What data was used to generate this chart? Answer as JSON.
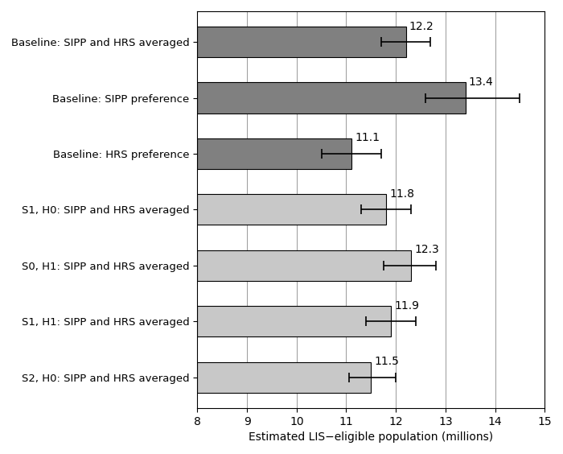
{
  "categories": [
    "Baseline: SIPP and HRS averaged",
    "Baseline: SIPP preference",
    "Baseline: HRS preference",
    "S1, H0: SIPP and HRS averaged",
    "S0, H1: SIPP and HRS averaged",
    "S1, H1: SIPP and HRS averaged",
    "S2, H0: SIPP and HRS averaged"
  ],
  "values": [
    12.2,
    13.4,
    11.1,
    11.8,
    12.3,
    11.9,
    11.5
  ],
  "xerr_low": [
    0.5,
    0.8,
    0.6,
    0.5,
    0.55,
    0.5,
    0.45
  ],
  "xerr_high": [
    0.5,
    1.1,
    0.6,
    0.5,
    0.5,
    0.5,
    0.5
  ],
  "bar_colors": [
    "#808080",
    "#808080",
    "#808080",
    "#c8c8c8",
    "#c8c8c8",
    "#c8c8c8",
    "#c8c8c8"
  ],
  "xlabel": "Estimated LIS−eligible population (millions)",
  "xlim": [
    8,
    15
  ],
  "xticks": [
    8,
    9,
    10,
    11,
    12,
    13,
    14,
    15
  ],
  "background_color": "#ffffff",
  "label_fontsize": 9.5,
  "tick_fontsize": 10,
  "value_fontsize": 10,
  "bar_height": 0.55,
  "grid_color": "#999999"
}
